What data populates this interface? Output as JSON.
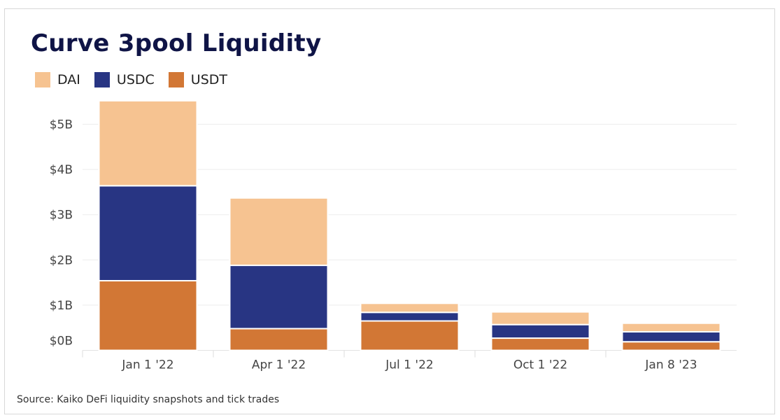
{
  "chart_data": {
    "type": "bar",
    "stacked": true,
    "title": "Curve 3pool Liquidity",
    "categories": [
      "Jan 1 '22",
      "Apr 1 '22",
      "Jul 1 '22",
      "Oct 1 '22",
      "Jan 8 '23"
    ],
    "series": [
      {
        "name": "DAI",
        "color": "#f6c391",
        "values": [
          1.88,
          1.49,
          0.2,
          0.28,
          0.19
        ]
      },
      {
        "name": "USDC",
        "color": "#283583",
        "values": [
          2.1,
          1.4,
          0.19,
          0.3,
          0.22
        ]
      },
      {
        "name": "USDT",
        "color": "#d27735",
        "values": [
          1.54,
          0.48,
          0.65,
          0.27,
          0.19
        ]
      }
    ],
    "yticks": [
      "$0B",
      "$1B",
      "$2B",
      "$3B",
      "$4B",
      "$5B"
    ],
    "ylim": [
      0,
      5.5
    ],
    "unit": "USD billions",
    "grid": true,
    "legend": "top-left",
    "source": "Source: Kaiko DeFi liquidity snapshots and tick trades"
  }
}
